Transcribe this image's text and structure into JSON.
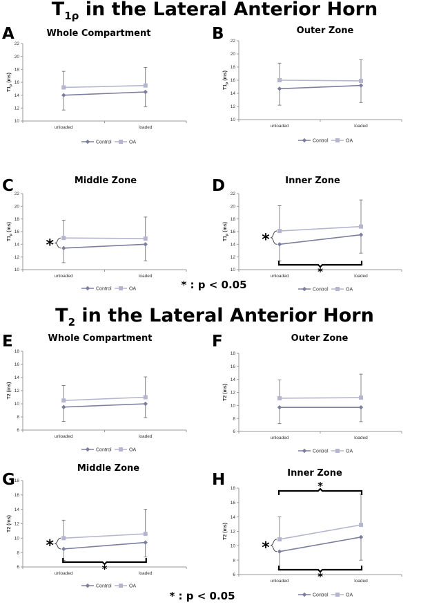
{
  "sections": [
    {
      "title_main": "T",
      "title_sub": "1ρ",
      "title_rest": " in the Lateral Anterior Horn"
    },
    {
      "title_main": "T",
      "title_sub": "2",
      "title_rest": " in the Lateral Anterior Horn"
    }
  ],
  "significance_note": "* :  p < 0.05",
  "legend": {
    "control": "Control",
    "oa": "OA"
  },
  "colors": {
    "control": "#7C7E9E",
    "oa": "#B5B5CF",
    "error": "#666666",
    "axis": "#999999",
    "bracket": "#000000"
  },
  "chart_data": [
    {
      "type": "line",
      "panel": "A",
      "title": "Whole Compartment",
      "ylabel_main": "T1",
      "ylabel_sub": "ρ",
      "ylabel_unit": " (ms)",
      "ylim": [
        10,
        22
      ],
      "yticks": [
        10,
        12,
        14,
        16,
        18,
        20,
        22
      ],
      "categories": [
        "unloaded",
        "loaded"
      ],
      "series": [
        {
          "name": "Control",
          "values": [
            14.0,
            14.5
          ],
          "error": [
            2.3,
            2.3
          ]
        },
        {
          "name": "OA",
          "values": [
            15.2,
            15.5
          ],
          "error": [
            2.5,
            2.8
          ]
        }
      ],
      "annotations": []
    },
    {
      "type": "line",
      "panel": "B",
      "title": "Outer Zone",
      "ylabel_main": "T1",
      "ylabel_sub": "ρ",
      "ylabel_unit": " (ms)",
      "ylim": [
        10,
        22
      ],
      "yticks": [
        10,
        12,
        14,
        16,
        18,
        20,
        22
      ],
      "categories": [
        "unloaded",
        "loaded"
      ],
      "series": [
        {
          "name": "Control",
          "values": [
            14.7,
            15.2
          ],
          "error": [
            2.5,
            2.6
          ]
        },
        {
          "name": "OA",
          "values": [
            16.0,
            15.9
          ],
          "error": [
            2.6,
            3.2
          ]
        }
      ],
      "annotations": []
    },
    {
      "type": "line",
      "panel": "C",
      "title": "Middle Zone",
      "ylabel_main": "T1",
      "ylabel_sub": "ρ",
      "ylabel_unit": " (ms)",
      "ylim": [
        10,
        22
      ],
      "yticks": [
        10,
        12,
        14,
        16,
        18,
        20,
        22
      ],
      "categories": [
        "unloaded",
        "loaded"
      ],
      "series": [
        {
          "name": "Control",
          "values": [
            13.4,
            14.0
          ],
          "error": [
            2.3,
            2.6
          ]
        },
        {
          "name": "OA",
          "values": [
            15.0,
            14.9
          ],
          "error": [
            2.8,
            3.4
          ]
        }
      ],
      "annotations": [
        {
          "kind": "group",
          "label": "*"
        }
      ]
    },
    {
      "type": "line",
      "panel": "D",
      "title": "Inner Zone",
      "ylabel_main": "T1",
      "ylabel_sub": "ρ",
      "ylabel_unit": " (ms)",
      "ylim": [
        10,
        22
      ],
      "yticks": [
        10,
        12,
        14,
        16,
        18,
        20,
        22
      ],
      "categories": [
        "unloaded",
        "loaded"
      ],
      "series": [
        {
          "name": "Control",
          "values": [
            14.0,
            15.5
          ],
          "error": [
            2.6,
            2.9
          ]
        },
        {
          "name": "OA",
          "values": [
            16.1,
            16.8
          ],
          "error": [
            4.0,
            4.2
          ]
        }
      ],
      "annotations": [
        {
          "kind": "group",
          "label": "*"
        },
        {
          "kind": "load_bottom",
          "label": "*"
        }
      ]
    },
    {
      "type": "line",
      "panel": "E",
      "title": "Whole Compartment",
      "ylabel_main": "T2",
      "ylabel_sub": "",
      "ylabel_unit": " (ms)",
      "ylim": [
        6,
        18
      ],
      "yticks": [
        6,
        8,
        10,
        12,
        14,
        16,
        18
      ],
      "categories": [
        "unloaded",
        "loaded"
      ],
      "series": [
        {
          "name": "Control",
          "values": [
            9.5,
            10.0
          ],
          "error": [
            2.2,
            2.1
          ]
        },
        {
          "name": "OA",
          "values": [
            10.5,
            11.0
          ],
          "error": [
            2.3,
            3.1
          ]
        }
      ],
      "annotations": []
    },
    {
      "type": "line",
      "panel": "F",
      "title": "Outer Zone",
      "ylabel_main": "T2",
      "ylabel_sub": "",
      "ylabel_unit": " (ms)",
      "ylim": [
        6,
        18
      ],
      "yticks": [
        6,
        8,
        10,
        12,
        14,
        16,
        18
      ],
      "categories": [
        "unloaded",
        "loaded"
      ],
      "series": [
        {
          "name": "Control",
          "values": [
            9.7,
            9.7
          ],
          "error": [
            2.5,
            2.2
          ]
        },
        {
          "name": "OA",
          "values": [
            11.1,
            11.2
          ],
          "error": [
            2.8,
            3.6
          ]
        }
      ],
      "annotations": []
    },
    {
      "type": "line",
      "panel": "G",
      "title": "Middle Zone",
      "ylabel_main": "T2",
      "ylabel_sub": "",
      "ylabel_unit": " (ms)",
      "ylim": [
        6,
        18
      ],
      "yticks": [
        6,
        8,
        10,
        12,
        14,
        16,
        18
      ],
      "categories": [
        "unloaded",
        "loaded"
      ],
      "series": [
        {
          "name": "Control",
          "values": [
            8.5,
            9.4
          ],
          "error": [
            1.6,
            2.0
          ]
        },
        {
          "name": "OA",
          "values": [
            10.0,
            10.6
          ],
          "error": [
            2.5,
            3.4
          ]
        }
      ],
      "annotations": [
        {
          "kind": "group",
          "label": "*"
        },
        {
          "kind": "load_bottom",
          "label": "*"
        }
      ]
    },
    {
      "type": "line",
      "panel": "H",
      "title": "Inner Zone",
      "ylabel_main": "T2",
      "ylabel_sub": "",
      "ylabel_unit": " (ms)",
      "ylim": [
        6,
        18
      ],
      "yticks": [
        6,
        8,
        10,
        12,
        14,
        16,
        18
      ],
      "categories": [
        "unloaded",
        "loaded"
      ],
      "series": [
        {
          "name": "Control",
          "values": [
            9.2,
            11.2
          ],
          "error": [
            2.5,
            3.2
          ]
        },
        {
          "name": "OA",
          "values": [
            10.9,
            12.9
          ],
          "error": [
            3.1,
            4.3
          ]
        }
      ],
      "annotations": [
        {
          "kind": "group",
          "label": "*"
        },
        {
          "kind": "load_bottom",
          "label": "*"
        },
        {
          "kind": "load_top",
          "label": "*"
        }
      ]
    }
  ]
}
